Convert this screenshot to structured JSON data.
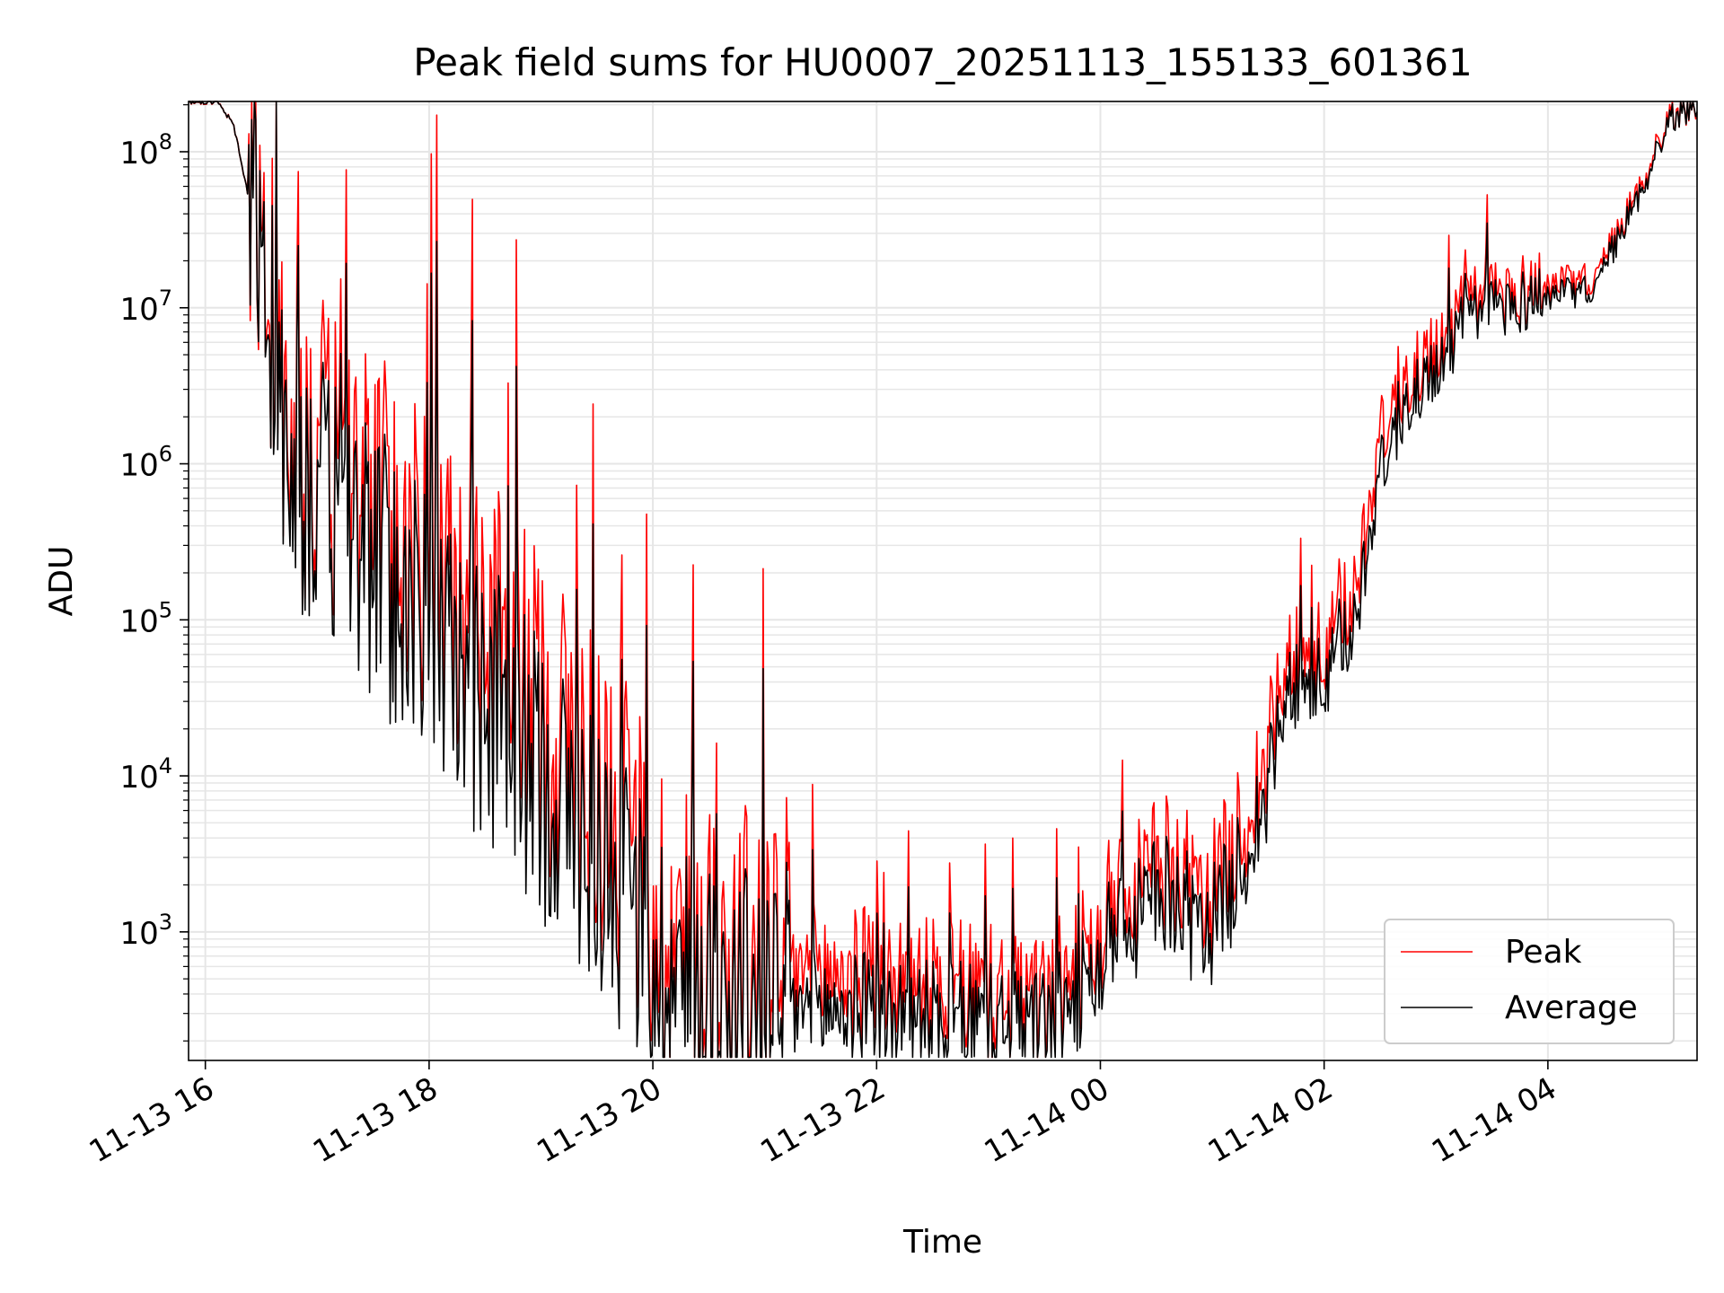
{
  "chart_data": {
    "type": "line",
    "title": "Peak field sums for HU0007_20251113_155133_601361",
    "xlabel": "Time",
    "ylabel": "ADU",
    "yscale": "log",
    "grid": true,
    "legend_position": "lower right",
    "xlim": [
      "2025-11-13 15:51",
      "2025-11-14 05:20"
    ],
    "ylim": [
      150,
      210000000
    ],
    "x_ticks": [
      "2025-11-13 16:00",
      "2025-11-13 18:00",
      "2025-11-13 20:00",
      "2025-11-13 22:00",
      "2025-11-14 00:00",
      "2025-11-14 02:00",
      "2025-11-14 04:00"
    ],
    "x_tick_labels": [
      "11-13 16",
      "11-13 18",
      "11-13 20",
      "11-13 22",
      "11-14 00",
      "11-14 02",
      "11-14 04"
    ],
    "y_ticks": [
      1000,
      10000,
      100000,
      1000000,
      10000000,
      100000000
    ],
    "y_tick_labels": [
      {
        "base": "10",
        "exp": "3"
      },
      {
        "base": "10",
        "exp": "4"
      },
      {
        "base": "10",
        "exp": "5"
      },
      {
        "base": "10",
        "exp": "6"
      },
      {
        "base": "10",
        "exp": "7"
      },
      {
        "base": "10",
        "exp": "8"
      }
    ],
    "series": [
      {
        "name": "Peak",
        "color": "#ff0000",
        "x": [
          "2025-11-13 15:51",
          "2025-11-13 16:06",
          "2025-11-13 16:15",
          "2025-11-13 16:22",
          "2025-11-13 16:27",
          "2025-11-13 16:40",
          "2025-11-13 16:50",
          "2025-11-13 17:00",
          "2025-11-13 17:15",
          "2025-11-13 17:30",
          "2025-11-13 18:00",
          "2025-11-13 18:30",
          "2025-11-13 19:00",
          "2025-11-13 19:30",
          "2025-11-13 19:50",
          "2025-11-13 20:00",
          "2025-11-13 20:15",
          "2025-11-13 20:30",
          "2025-11-13 21:00",
          "2025-11-13 21:30",
          "2025-11-13 22:00",
          "2025-11-13 22:30",
          "2025-11-13 23:00",
          "2025-11-13 23:30",
          "2025-11-13 23:50",
          "2025-11-14 00:10",
          "2025-11-14 00:30",
          "2025-11-14 00:45",
          "2025-11-14 00:50",
          "2025-11-14 01:00",
          "2025-11-14 01:15",
          "2025-11-14 01:30",
          "2025-11-14 01:40",
          "2025-11-14 02:00",
          "2025-11-14 02:15",
          "2025-11-14 02:30",
          "2025-11-14 02:45",
          "2025-11-14 03:00",
          "2025-11-14 03:15",
          "2025-11-14 03:30",
          "2025-11-14 04:00",
          "2025-11-14 04:25",
          "2025-11-14 04:35",
          "2025-11-14 04:50",
          "2025-11-14 05:05",
          "2025-11-14 05:20"
        ],
        "y": [
          210000000,
          210000000,
          150000000,
          60000000,
          20000000,
          3000000,
          1500000,
          1000000,
          800000,
          500000,
          180000,
          70000,
          25000,
          9000,
          3000,
          1500,
          800,
          600,
          600,
          550,
          500,
          450,
          400,
          350,
          650,
          1200,
          2800,
          2500,
          1400,
          1800,
          4200,
          14000,
          55000,
          60000,
          110000,
          1500000,
          3500000,
          5500000,
          10000000,
          12000000,
          14000000,
          15000000,
          26000000,
          60000000,
          170000000,
          210000000
        ]
      },
      {
        "name": "Average",
        "color": "#000000",
        "x": [
          "2025-11-13 15:51",
          "2025-11-13 16:06",
          "2025-11-13 16:15",
          "2025-11-13 16:22",
          "2025-11-13 16:27",
          "2025-11-13 16:40",
          "2025-11-13 16:50",
          "2025-11-13 17:00",
          "2025-11-13 17:15",
          "2025-11-13 17:30",
          "2025-11-13 18:00",
          "2025-11-13 18:30",
          "2025-11-13 19:00",
          "2025-11-13 19:30",
          "2025-11-13 19:50",
          "2025-11-13 20:00",
          "2025-11-13 20:15",
          "2025-11-13 20:30",
          "2025-11-13 21:00",
          "2025-11-13 21:30",
          "2025-11-13 22:00",
          "2025-11-13 22:30",
          "2025-11-13 23:00",
          "2025-11-13 23:30",
          "2025-11-13 23:50",
          "2025-11-14 00:10",
          "2025-11-14 00:30",
          "2025-11-14 00:45",
          "2025-11-14 00:50",
          "2025-11-14 01:00",
          "2025-11-14 01:15",
          "2025-11-14 01:30",
          "2025-11-14 01:40",
          "2025-11-14 02:00",
          "2025-11-14 02:15",
          "2025-11-14 02:30",
          "2025-11-14 02:45",
          "2025-11-14 03:00",
          "2025-11-14 03:15",
          "2025-11-14 03:30",
          "2025-11-14 04:00",
          "2025-11-14 04:25",
          "2025-11-14 04:35",
          "2025-11-14 04:50",
          "2025-11-14 05:05",
          "2025-11-14 05:20"
        ],
        "y": [
          210000000,
          210000000,
          150000000,
          60000000,
          20000000,
          2000000,
          900000,
          600000,
          400000,
          250000,
          80000,
          30000,
          10000,
          3500,
          1200,
          700,
          450,
          350,
          330,
          320,
          300,
          280,
          260,
          250,
          420,
          800,
          1800,
          1600,
          900,
          1100,
          2500,
          8000,
          35000,
          40000,
          70000,
          900000,
          2500000,
          4000000,
          8000000,
          10000000,
          12000000,
          13000000,
          24000000,
          55000000,
          160000000,
          210000000
        ]
      }
    ]
  }
}
